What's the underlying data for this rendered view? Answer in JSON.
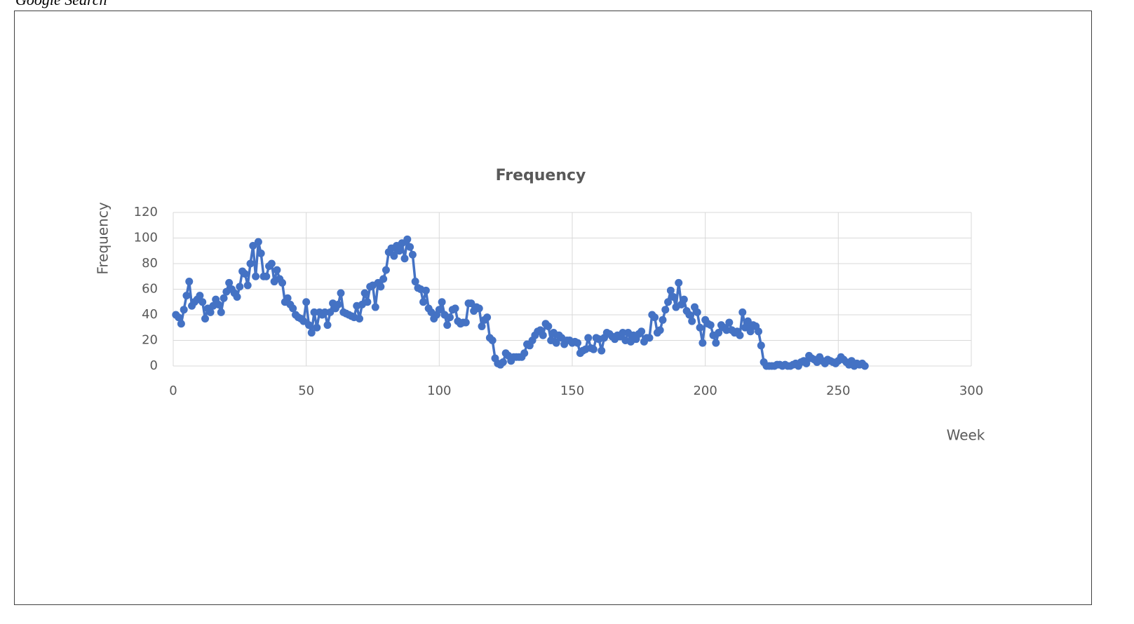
{
  "caption": "Google Search",
  "chart_data": {
    "type": "line",
    "title": "Frequency",
    "x_label": "Week",
    "y_label": "Frequency",
    "color": "#4472c4",
    "markers": true,
    "grid": true,
    "xlim": [
      0,
      300
    ],
    "xticks": [
      0,
      50,
      100,
      150,
      200,
      250,
      300
    ],
    "ylim": [
      0,
      120
    ],
    "yticks": [
      0,
      20,
      40,
      60,
      80,
      100,
      120
    ],
    "x": [
      1,
      2,
      3,
      4,
      5,
      6,
      7,
      8,
      9,
      10,
      11,
      12,
      13,
      14,
      15,
      16,
      17,
      18,
      19,
      20,
      21,
      22,
      23,
      24,
      25,
      26,
      27,
      28,
      29,
      30,
      31,
      32,
      33,
      34,
      35,
      36,
      37,
      38,
      39,
      40,
      41,
      42,
      43,
      44,
      45,
      46,
      47,
      48,
      49,
      50,
      51,
      52,
      53,
      54,
      55,
      56,
      57,
      58,
      59,
      60,
      61,
      62,
      63,
      64,
      65,
      66,
      67,
      68,
      69,
      70,
      71,
      72,
      73,
      74,
      75,
      76,
      77,
      78,
      79,
      80,
      81,
      82,
      83,
      84,
      85,
      86,
      87,
      88,
      89,
      90,
      91,
      92,
      93,
      94,
      95,
      96,
      97,
      98,
      99,
      100,
      101,
      102,
      103,
      104,
      105,
      106,
      107,
      108,
      109,
      110,
      111,
      112,
      113,
      114,
      115,
      116,
      117,
      118,
      119,
      120,
      121,
      122,
      123,
      124,
      125,
      126,
      127,
      128,
      129,
      130,
      131,
      132,
      133,
      134,
      135,
      136,
      137,
      138,
      139,
      140,
      141,
      142,
      143,
      144,
      145,
      146,
      147,
      148,
      149,
      150,
      151,
      152,
      153,
      154,
      155,
      156,
      157,
      158,
      159,
      160,
      161,
      162,
      163,
      164,
      165,
      166,
      167,
      168,
      169,
      170,
      171,
      172,
      173,
      174,
      175,
      176,
      177,
      178,
      179,
      180,
      181,
      182,
      183,
      184,
      185,
      186,
      187,
      188,
      189,
      190,
      191,
      192,
      193,
      194,
      195,
      196,
      197,
      198,
      199,
      200,
      201,
      202,
      203,
      204,
      205,
      206,
      207,
      208,
      209,
      210,
      211,
      212,
      213,
      214,
      215,
      216,
      217,
      218,
      219,
      220,
      221,
      222,
      223,
      224,
      225,
      226,
      227,
      228,
      229,
      230,
      231,
      232,
      233,
      234,
      235,
      236,
      237,
      238,
      239,
      240,
      241,
      242,
      243,
      244,
      245,
      246,
      247,
      248,
      249,
      250,
      251,
      252,
      253,
      254,
      255,
      256,
      257,
      258,
      259,
      260
    ],
    "values": [
      40,
      38,
      33,
      44,
      55,
      66,
      47,
      50,
      52,
      55,
      50,
      37,
      45,
      42,
      47,
      52,
      48,
      42,
      53,
      58,
      65,
      60,
      57,
      54,
      62,
      74,
      72,
      63,
      80,
      94,
      70,
      97,
      88,
      70,
      70,
      78,
      80,
      66,
      75,
      68,
      65,
      50,
      53,
      48,
      45,
      40,
      38,
      37,
      35,
      50,
      32,
      26,
      42,
      30,
      42,
      40,
      42,
      32,
      42,
      49,
      45,
      48,
      57,
      42,
      41,
      40,
      39,
      38,
      47,
      37,
      48,
      57,
      50,
      62,
      63,
      46,
      65,
      62,
      68,
      75,
      89,
      92,
      86,
      94,
      90,
      96,
      84,
      99,
      93,
      87,
      66,
      61,
      60,
      50,
      59,
      45,
      42,
      37,
      40,
      44,
      50,
      40,
      32,
      38,
      44,
      45,
      35,
      33,
      34,
      34,
      49,
      49,
      43,
      46,
      45,
      31,
      36,
      38,
      22,
      20,
      6,
      2,
      1,
      3,
      10,
      8,
      4,
      7,
      7,
      7,
      7,
      10,
      17,
      16,
      20,
      24,
      27,
      28,
      24,
      33,
      31,
      20,
      26,
      18,
      24,
      22,
      17,
      20,
      20,
      18,
      19,
      18,
      10,
      12,
      13,
      22,
      14,
      13,
      22,
      21,
      12,
      22,
      26,
      25,
      23,
      21,
      24,
      23,
      26,
      20,
      26,
      19,
      24,
      21,
      25,
      27,
      19,
      22,
      22,
      40,
      38,
      26,
      28,
      36,
      44,
      50,
      59,
      54,
      46,
      65,
      48,
      52,
      43,
      40,
      35,
      46,
      42,
      30,
      18,
      36,
      33,
      32,
      24,
      18,
      26,
      32,
      30,
      28,
      34,
      28,
      26,
      27,
      24,
      42,
      30,
      35,
      27,
      32,
      31,
      27,
      16,
      3,
      0,
      0,
      0,
      0,
      1,
      1,
      0,
      1,
      0,
      0,
      1,
      2,
      0,
      3,
      4,
      2,
      8,
      6,
      5,
      3,
      7,
      4,
      2,
      5,
      4,
      3,
      2,
      4,
      7,
      5,
      3,
      1,
      4,
      0,
      2,
      1,
      2,
      0
    ]
  }
}
